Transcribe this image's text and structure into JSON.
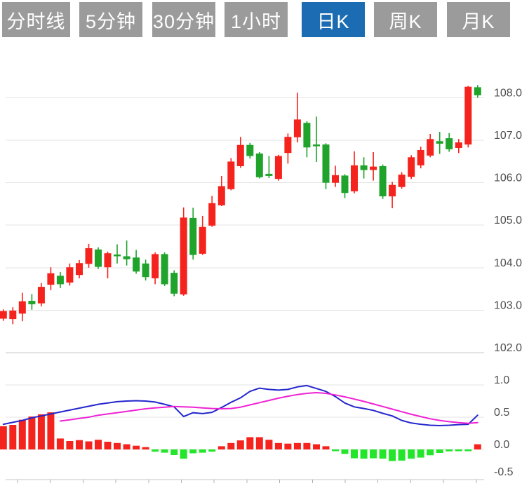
{
  "tabs": {
    "active_color": "#1b6cb2",
    "inactive_color": "#9b9b9b",
    "text_color": "#ffffff",
    "items": [
      {
        "label": "分时线",
        "active": false
      },
      {
        "label": "5分钟",
        "active": false
      },
      {
        "label": "30分钟",
        "active": false
      },
      {
        "label": "1小时",
        "active": false
      },
      {
        "label": "日K",
        "active": true
      },
      {
        "label": "周K",
        "active": false
      },
      {
        "label": "月K",
        "active": false
      }
    ]
  },
  "chart_data": [
    {
      "type": "candlestick",
      "panel": "price",
      "grid": "horizontal",
      "legend": "none",
      "y_tick_labels": [
        "108.0",
        "107.0",
        "106.0",
        "105.0",
        "104.0",
        "103.0",
        "102.0"
      ],
      "y_tick_values": [
        108,
        107,
        106,
        105,
        104,
        103,
        102
      ],
      "ylim": [
        101.9,
        108.45
      ],
      "up_color": "#f5231d",
      "down_color": "#1fa32b",
      "candles_ohlc": [
        [
          102.8,
          103.02,
          102.75,
          102.98
        ],
        [
          102.79,
          103.07,
          102.67,
          102.99
        ],
        [
          102.92,
          103.41,
          102.74,
          103.21
        ],
        [
          103.22,
          103.38,
          103.01,
          103.14
        ],
        [
          103.16,
          103.64,
          103.09,
          103.55
        ],
        [
          103.6,
          104.01,
          103.47,
          103.87
        ],
        [
          103.81,
          103.9,
          103.52,
          103.61
        ],
        [
          103.65,
          104.1,
          103.58,
          104.01
        ],
        [
          103.83,
          104.18,
          103.75,
          104.11
        ],
        [
          104.09,
          104.56,
          104.0,
          104.46
        ],
        [
          104.43,
          104.48,
          103.97,
          104.02
        ],
        [
          104.01,
          104.38,
          103.75,
          104.34
        ],
        [
          104.31,
          104.55,
          104.1,
          104.28
        ],
        [
          104.27,
          104.64,
          104.05,
          104.2
        ],
        [
          104.24,
          104.42,
          103.86,
          103.91
        ],
        [
          104.1,
          104.19,
          103.7,
          103.78
        ],
        [
          103.75,
          104.36,
          103.61,
          104.32
        ],
        [
          104.32,
          104.36,
          103.57,
          103.61
        ],
        [
          103.88,
          103.94,
          103.33,
          103.39
        ],
        [
          103.37,
          105.42,
          103.34,
          105.18
        ],
        [
          105.17,
          105.41,
          104.19,
          104.3
        ],
        [
          104.33,
          105.22,
          104.3,
          104.96
        ],
        [
          104.99,
          105.69,
          104.96,
          105.52
        ],
        [
          105.47,
          106.16,
          105.45,
          105.92
        ],
        [
          105.85,
          106.58,
          105.82,
          106.5
        ],
        [
          106.39,
          107.08,
          106.35,
          106.89
        ],
        [
          106.89,
          106.94,
          106.57,
          106.63
        ],
        [
          106.69,
          106.72,
          106.1,
          106.13
        ],
        [
          106.21,
          106.63,
          106.11,
          106.16
        ],
        [
          106.09,
          106.66,
          106.05,
          106.63
        ],
        [
          106.7,
          107.16,
          106.45,
          107.08
        ],
        [
          107.07,
          108.12,
          106.95,
          107.49
        ],
        [
          107.41,
          107.45,
          106.6,
          106.83
        ],
        [
          106.9,
          107.56,
          106.49,
          106.86
        ],
        [
          106.9,
          106.93,
          105.85,
          106.0
        ],
        [
          106.0,
          106.4,
          105.9,
          106.18
        ],
        [
          106.17,
          106.2,
          105.64,
          105.76
        ],
        [
          105.8,
          106.74,
          105.75,
          106.41
        ],
        [
          106.41,
          106.6,
          106.1,
          106.3
        ],
        [
          106.3,
          106.72,
          106.05,
          106.38
        ],
        [
          106.39,
          106.43,
          105.62,
          105.68
        ],
        [
          105.68,
          106.02,
          105.4,
          105.95
        ],
        [
          105.9,
          106.25,
          105.86,
          106.19
        ],
        [
          106.14,
          106.65,
          106.09,
          106.6
        ],
        [
          106.41,
          106.85,
          106.34,
          106.77
        ],
        [
          106.64,
          107.15,
          106.6,
          107.03
        ],
        [
          106.98,
          107.2,
          106.68,
          106.92
        ],
        [
          107.05,
          107.17,
          106.73,
          106.79
        ],
        [
          106.82,
          107.03,
          106.7,
          106.95
        ],
        [
          106.9,
          108.28,
          106.83,
          108.26
        ],
        [
          108.25,
          108.3,
          108.0,
          108.06
        ]
      ]
    },
    {
      "type": "bar+line",
      "panel": "macd",
      "grid": "horizontal",
      "legend": "none",
      "y_tick_labels": [
        "1.0",
        "0.5",
        "0.0",
        "-0.5"
      ],
      "y_tick_values": [
        1,
        0.5,
        0,
        -0.5
      ],
      "ylim": [
        -0.55,
        1.05
      ],
      "bar_up_color": "#f5231d",
      "bar_down_color": "#23e52a",
      "histogram": [
        0.36,
        0.38,
        0.46,
        0.51,
        0.545,
        0.575,
        0.17,
        0.13,
        0.145,
        0.125,
        0.15,
        0.12,
        0.1,
        0.08,
        0.058,
        0.036,
        -0.035,
        -0.05,
        -0.087,
        -0.145,
        -0.06,
        -0.05,
        -0.035,
        0.05,
        0.1,
        0.14,
        0.19,
        0.19,
        0.15,
        0.1,
        0.09,
        0.1,
        0.1,
        0.08,
        0.05,
        -0.02,
        -0.07,
        -0.137,
        -0.144,
        -0.137,
        -0.144,
        -0.18,
        -0.173,
        -0.144,
        -0.126,
        -0.09,
        -0.054,
        -0.029,
        -0.018,
        -0.014,
        0.08
      ],
      "series": [
        {
          "id": "blue-line",
          "color": "#2326cc",
          "values": [
            0.39,
            0.42,
            0.45,
            0.49,
            0.52,
            0.55,
            0.58,
            0.61,
            0.64,
            0.67,
            0.7,
            0.72,
            0.74,
            0.75,
            0.755,
            0.75,
            0.735,
            0.7,
            0.66,
            0.51,
            0.57,
            0.555,
            0.575,
            0.65,
            0.73,
            0.8,
            0.9,
            0.95,
            0.93,
            0.92,
            0.93,
            0.97,
            0.99,
            0.945,
            0.9,
            0.82,
            0.72,
            0.66,
            0.635,
            0.605,
            0.56,
            0.52,
            0.45,
            0.41,
            0.39,
            0.375,
            0.37,
            0.375,
            0.385,
            0.39,
            0.53
          ]
        },
        {
          "id": "magenta-line",
          "color": "#ee22d4",
          "values": [
            null,
            null,
            null,
            null,
            null,
            null,
            0.44,
            0.46,
            0.48,
            0.5,
            0.53,
            0.55,
            0.57,
            0.59,
            0.61,
            0.63,
            0.645,
            0.655,
            0.665,
            0.66,
            0.655,
            0.645,
            0.635,
            0.63,
            0.635,
            0.655,
            0.69,
            0.725,
            0.76,
            0.795,
            0.825,
            0.85,
            0.87,
            0.88,
            0.87,
            0.845,
            0.815,
            0.78,
            0.745,
            0.705,
            0.665,
            0.625,
            0.585,
            0.545,
            0.51,
            0.475,
            0.45,
            0.43,
            0.415,
            0.405,
            0.415
          ]
        }
      ],
      "x_axis": {
        "tick_count": 15,
        "labels_visible": false
      }
    }
  ],
  "style": {
    "grid_color": "#e3e3e3",
    "axis_color": "#c6c6c9",
    "tick_color": "#b0b0b0",
    "label_color": "#4d4d4d"
  }
}
